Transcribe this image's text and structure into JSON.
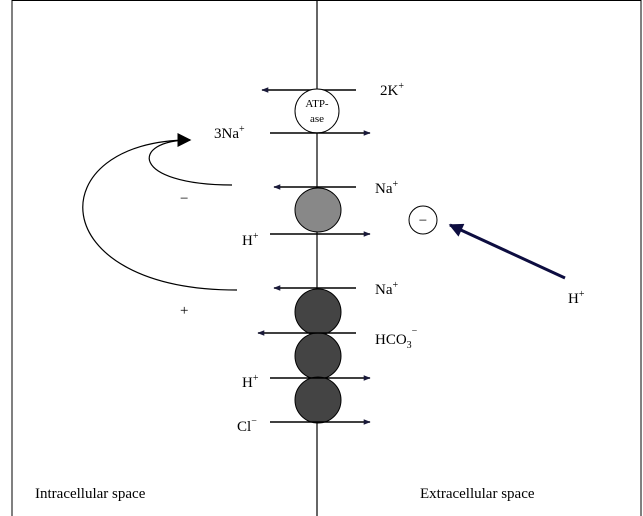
{
  "labels": {
    "pump_k": {
      "text": "2K",
      "sup": "+"
    },
    "atpase": {
      "line1": "ATP-",
      "line2": "ase"
    },
    "pump_na": {
      "text": "3Na",
      "sup": "+"
    },
    "loop_minus": "−",
    "exchanger1_na": {
      "text": "Na",
      "sup": "+"
    },
    "exchanger1_h": {
      "text": "H",
      "sup": "+"
    },
    "charge_minus": "−",
    "external_h": {
      "text": "H",
      "sup": "+"
    },
    "loop_plus": "+",
    "exchanger2_na": {
      "text": "Na",
      "sup": "+"
    },
    "exchanger2_hco3": {
      "text": "HCO",
      "sub": "3",
      "sup": "−"
    },
    "exchanger3_h": {
      "text": "H",
      "sup": "+"
    },
    "exchanger3_cl": {
      "text": "Cl",
      "sup": "−"
    },
    "intracellular": "Intracellular space",
    "extracellular": "Extracellular space"
  }
}
